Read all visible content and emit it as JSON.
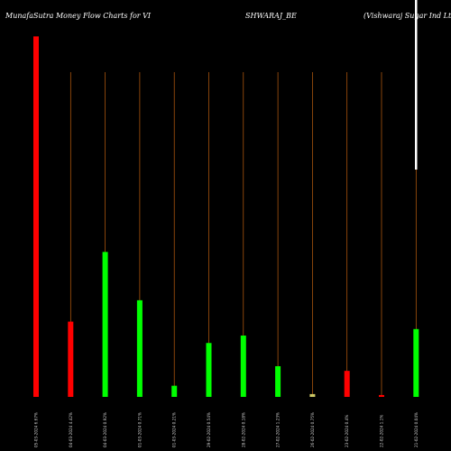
{
  "chart_data": {
    "type": "bar",
    "title_parts": [
      "MunafaSutra  Money Flow  Charts for VI",
      "SHWARAJ_BE",
      "(Vishwaraj Sugar Ind Ltd) Money Flow Charts MunafaSutra"
    ],
    "categories": [
      "05-03-2024 6.67%",
      "04-03-2024 4.42%",
      "04-03-2024 0.92%",
      "01-03-2024 0.71%",
      "01-03-2024 0.21%",
      "29-02-2024 0.54%",
      "28-02-2024 0.18%",
      "27-02-2024 1.23%",
      "26-02-2024 0.75%",
      "23-02-2024 0.4%",
      "22-02-2024 1.1%",
      "21-02-2024 0.04%"
    ],
    "values": [
      388,
      81,
      156,
      104,
      12,
      58,
      66,
      33,
      3,
      28,
      2,
      73
    ],
    "colors": [
      "red",
      "red",
      "lime",
      "lime",
      "lime",
      "lime",
      "lime",
      "lime",
      "olive",
      "red",
      "red",
      "lime"
    ],
    "ylim": [
      0,
      400
    ],
    "grid": false,
    "colors_map": {
      "red": "#ff0000",
      "lime": "#00ff00",
      "olive": "#ccc866",
      "background": "#000000",
      "guide": "#c06010"
    }
  }
}
